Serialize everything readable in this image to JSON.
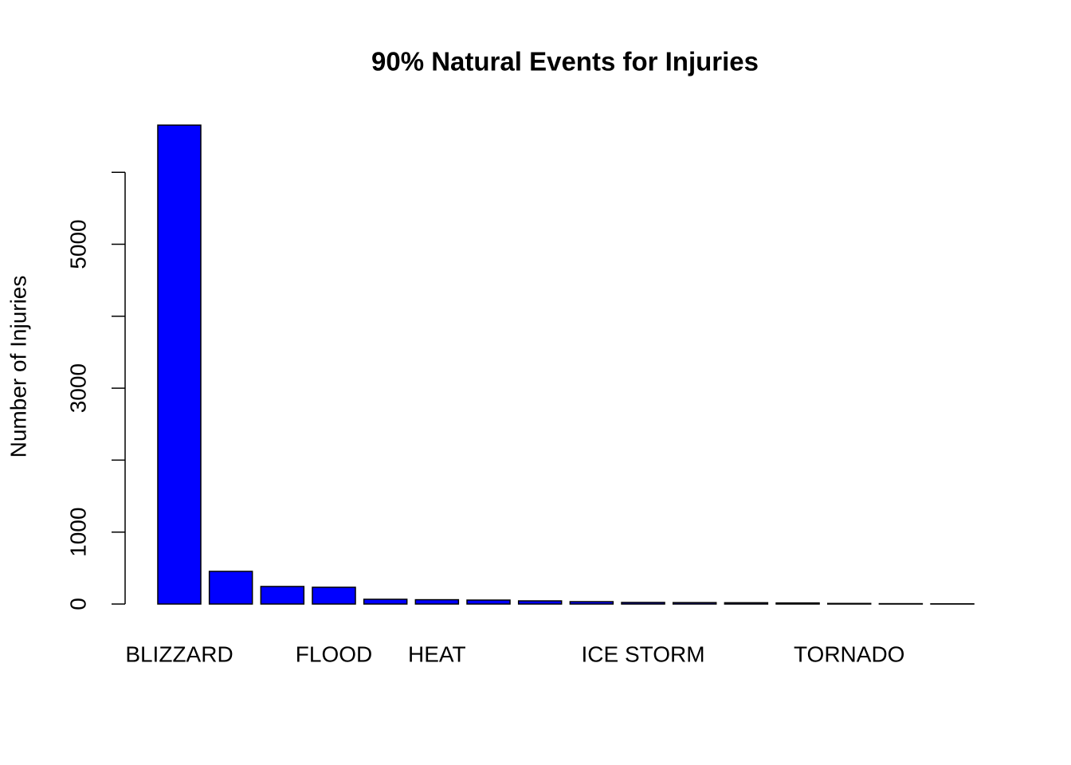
{
  "chart_data": {
    "type": "bar",
    "title": "90% Natural Events for Injuries",
    "y_label": "Number of Injuries",
    "categories": [
      "BLIZZARD",
      null,
      null,
      "FLOOD",
      null,
      "HEAT",
      null,
      null,
      null,
      "ICE STORM",
      null,
      null,
      null,
      "TORNADO",
      null,
      null
    ],
    "values": [
      6656,
      454,
      244,
      233,
      66,
      60,
      55,
      44,
      33,
      22,
      20,
      18,
      15,
      8,
      5,
      3
    ],
    "color": "#0000ff",
    "ylim": [
      0,
      6900
    ],
    "yticks": [
      0,
      1000,
      {
        "value": 2000,
        "label": null
      },
      3000,
      {
        "value": 4000,
        "label": null
      },
      5000,
      {
        "value": 6000,
        "label": null
      }
    ]
  }
}
